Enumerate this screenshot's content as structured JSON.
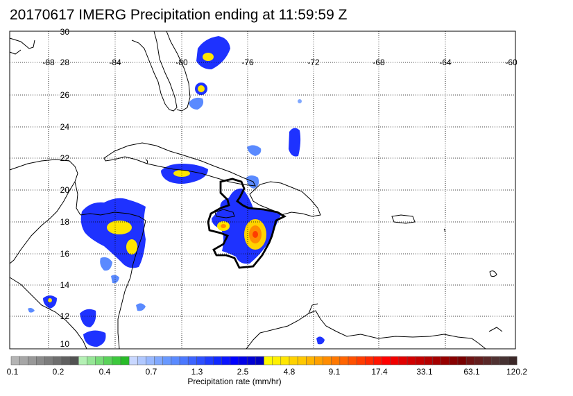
{
  "title": "20170617 IMERG Precipitation ending at 11:59:59 Z",
  "lon_labels": [
    "-88",
    "-84",
    "-80",
    "-76",
    "-72",
    "-68",
    "-64",
    "-60"
  ],
  "lat_labels": [
    "30",
    "28",
    "26",
    "24",
    "22",
    "20",
    "18",
    "16",
    "14",
    "12",
    "10"
  ],
  "colorbar": {
    "tick_labels": [
      "0.1",
      "0.2",
      "0.4",
      "0.7",
      "1.3",
      "2.5",
      "4.8",
      "9.1",
      "17.4",
      "33.1",
      "63.1",
      "120.2"
    ],
    "label": "Precipitation rate (mm/hr)",
    "colors": [
      "#b4b4b4",
      "#a6a6a6",
      "#989898",
      "#8a8a8a",
      "#7c7c7c",
      "#6e6e6e",
      "#606060",
      "#525252",
      "#b4f0b4",
      "#96e696",
      "#78dc78",
      "#5ad25a",
      "#3cc83c",
      "#28bb28",
      "#c8d7ff",
      "#b0c8ff",
      "#98b8ff",
      "#80a8ff",
      "#6898ff",
      "#5a8aff",
      "#4b78ff",
      "#3c64ff",
      "#2d50ff",
      "#1e3cff",
      "#1028ff",
      "#0a14ff",
      "#0000ff",
      "#0000e6",
      "#0000d2",
      "#0000be",
      "#fffa00",
      "#fff000",
      "#ffe600",
      "#ffd200",
      "#ffc800",
      "#ffb400",
      "#ffa000",
      "#ff8c00",
      "#ff7800",
      "#ff6400",
      "#ff5000",
      "#ff3c00",
      "#ff2800",
      "#ff1400",
      "#ff0000",
      "#f00000",
      "#e10000",
      "#d20000",
      "#c30000",
      "#b40000",
      "#a50000",
      "#960000",
      "#870000",
      "#780000",
      "#6e1414",
      "#641e1e",
      "#5a2828",
      "#503232",
      "#463232",
      "#3c2828"
    ]
  }
}
